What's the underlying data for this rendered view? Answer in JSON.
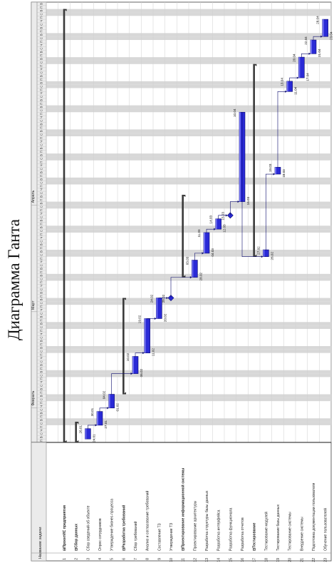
{
  "page": {
    "title": "Диаграмма Ганта"
  },
  "table": {
    "header_name": "Название задачи",
    "rows": [
      {
        "id": "1",
        "name": "⊟ПроектИС предприятия",
        "summary": true
      },
      {
        "id": "2",
        "name": "⊟Сбор данных",
        "summary": true
      },
      {
        "id": "3",
        "name": "Сбор сведений об объекте",
        "summary": false
      },
      {
        "id": "4",
        "name": "Опрос сотрудников",
        "summary": false
      },
      {
        "id": "5",
        "name": "Утверждение бизнес-процесса",
        "summary": false
      },
      {
        "id": "6",
        "name": "⊟Разработка требований",
        "summary": true
      },
      {
        "id": "7",
        "name": "Сбор требований",
        "summary": false
      },
      {
        "id": "8",
        "name": "Анализ и согласование требований",
        "summary": false
      },
      {
        "id": "9",
        "name": "Составление ТЗ",
        "summary": false
      },
      {
        "id": "10",
        "name": "Утверждение ТЗ",
        "summary": false
      },
      {
        "id": "11",
        "name": "⊟Проектирование информационной системы",
        "summary": true
      },
      {
        "id": "12",
        "name": "Проектирование архитектуры",
        "summary": false
      },
      {
        "id": "13",
        "name": "Разработка структуры базы данных",
        "summary": false
      },
      {
        "id": "14",
        "name": "Разработка интерфейса",
        "summary": false
      },
      {
        "id": "15",
        "name": "Разработка функционала",
        "summary": false
      },
      {
        "id": "16",
        "name": "Разработка отчетов",
        "summary": false
      },
      {
        "id": "17",
        "name": "⊟Тестирование",
        "summary": true
      },
      {
        "id": "18",
        "name": "Тестирование модулей",
        "summary": false
      },
      {
        "id": "19",
        "name": "Тестирование базы данных",
        "summary": false
      },
      {
        "id": "20",
        "name": "Тестирование системы",
        "summary": false
      },
      {
        "id": "21",
        "name": "Внедрение системы",
        "summary": false
      },
      {
        "id": "22",
        "name": "Подготовка документации пользователя",
        "summary": false
      },
      {
        "id": "23",
        "name": "Обучение пользователей",
        "summary": false
      }
    ]
  },
  "timescale": {
    "months": [
      "Февраль",
      "Март",
      "Апрель"
    ],
    "day_letters": "ПВСЧПСВ"
  },
  "tasks": [
    {
      "row": 1,
      "type": "summary",
      "start": 0,
      "end": 126
    },
    {
      "row": 2,
      "type": "summary",
      "start": 0,
      "end": 6
    },
    {
      "row": 3,
      "type": "task",
      "start": 1,
      "end": 4,
      "label_start": "24.01",
      "label_end": "26.01"
    },
    {
      "row": 4,
      "type": "task",
      "start": 5,
      "end": 9,
      "label_start": "27.01",
      "label_end": "30.01"
    },
    {
      "row": 5,
      "type": "task",
      "start": 10,
      "end": 14,
      "label_start": "01.02",
      "label_end": "04.02"
    },
    {
      "row": 6,
      "type": "summary",
      "start": 14,
      "end": 42
    },
    {
      "row": 7,
      "type": "task",
      "start": 20,
      "end": 25,
      "label_start": "06.02",
      "label_end": "10.02"
    },
    {
      "row": 8,
      "type": "task",
      "start": 26,
      "end": 36,
      "label_start": "11.02",
      "label_end": "19.02"
    },
    {
      "row": 9,
      "type": "task",
      "start": 36,
      "end": 42,
      "label_start": "20.02",
      "label_end": "24.02"
    },
    {
      "row": 10,
      "type": "milestone",
      "start": 42,
      "end": 42,
      "label_start": "",
      "label_end": "25.02"
    },
    {
      "row": 11,
      "type": "summary",
      "start": 48,
      "end": 72
    },
    {
      "row": 12,
      "type": "task",
      "start": 48,
      "end": 53,
      "label_start": "28.02",
      "label_end": "03.03"
    },
    {
      "row": 13,
      "type": "task",
      "start": 55,
      "end": 61,
      "label_start": "04.03",
      "label_end": "11.03"
    },
    {
      "row": 14,
      "type": "task",
      "start": 62,
      "end": 65,
      "label_start": "12.03",
      "label_end": "14.03"
    },
    {
      "row": 15,
      "type": "milestone",
      "start": 66,
      "end": 66,
      "label_start": "",
      "label_end": "15.03"
    },
    {
      "row": 16,
      "type": "task",
      "start": 70,
      "end": 96,
      "label_start": "16.03",
      "label_end": "10.04"
    },
    {
      "row": 17,
      "type": "summary",
      "start": 54,
      "end": 110
    },
    {
      "row": 18,
      "type": "task",
      "start": 54,
      "end": 56,
      "label_start": "26.02",
      "label_end": "27.02"
    },
    {
      "row": 19,
      "type": "task",
      "start": 78,
      "end": 80,
      "label_start": "18.03",
      "label_end": "19.03"
    },
    {
      "row": 20,
      "type": "task",
      "start": 102,
      "end": 105,
      "label_start": "11.04",
      "label_end": "13.04"
    },
    {
      "row": 21,
      "type": "task",
      "start": 106,
      "end": 112,
      "label_start": "17.04",
      "label_end": "20.04"
    },
    {
      "row": 22,
      "type": "task",
      "start": 113,
      "end": 117,
      "label_start": "21.04",
      "label_end": "22.04"
    },
    {
      "row": 23,
      "type": "task",
      "start": 118,
      "end": 123,
      "label_start": "23.04",
      "label_end": "28.04"
    }
  ],
  "colors": {
    "task": "#2a2ad6",
    "task_edge": "#0c0c6e",
    "summary": "#3a3a3a",
    "grid": "#cfcfcf",
    "weekend": "#d8d8d8",
    "header_bg": "#ebebeb"
  }
}
